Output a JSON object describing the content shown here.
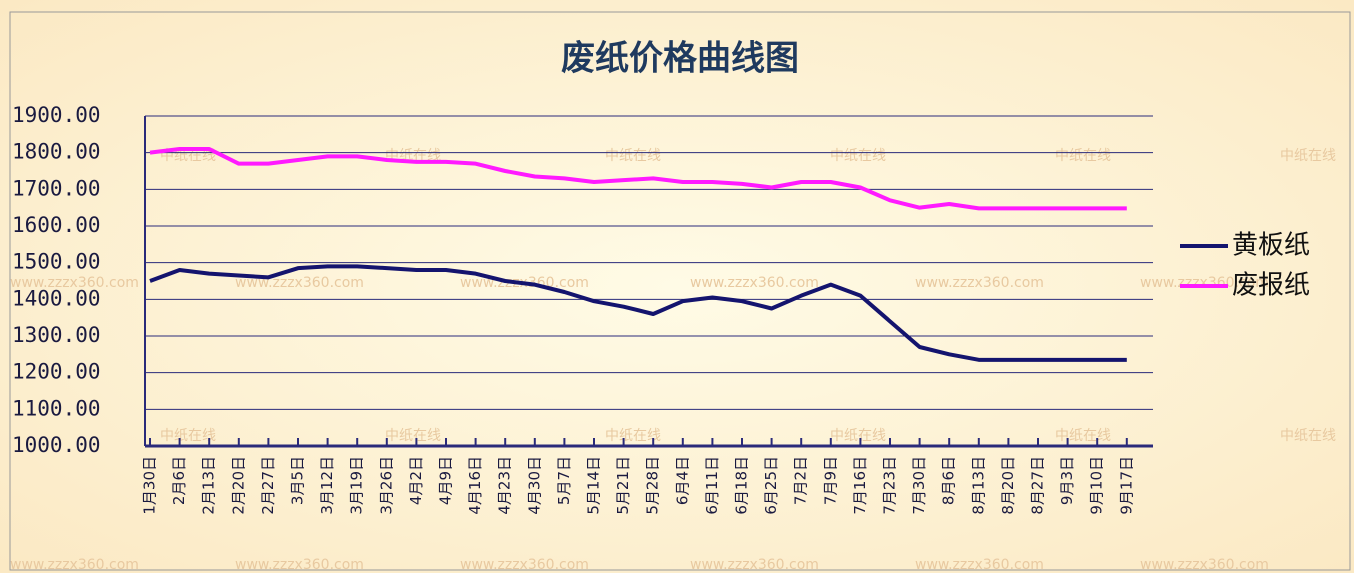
{
  "chart_data": {
    "type": "line",
    "title": "废纸价格曲线图",
    "categories": [
      "1月30日",
      "2月6日",
      "2月13日",
      "2月20日",
      "2月27日",
      "3月5日",
      "3月12日",
      "3月19日",
      "3月26日",
      "4月2日",
      "4月9日",
      "4月16日",
      "4月23日",
      "4月30日",
      "5月7日",
      "5月14日",
      "5月21日",
      "5月28日",
      "6月4日",
      "6月11日",
      "6月18日",
      "6月25日",
      "7月2日",
      "7月9日",
      "7月16日",
      "7月23日",
      "7月30日",
      "8月6日",
      "8月13日",
      "8月20日",
      "8月27日",
      "9月3日",
      "9月10日",
      "9月17日"
    ],
    "series": [
      {
        "name": "黄板纸",
        "color": "#14146e",
        "values": [
          1450,
          1480,
          1470,
          1465,
          1460,
          1485,
          1490,
          1490,
          1485,
          1480,
          1480,
          1470,
          1450,
          1440,
          1420,
          1395,
          1380,
          1360,
          1395,
          1405,
          1395,
          1375,
          1410,
          1440,
          1410,
          1340,
          1270,
          1250,
          1235,
          1235,
          1235,
          1235,
          1235,
          1235
        ]
      },
      {
        "name": "废报纸",
        "color": "#ff1aff",
        "values": [
          1800,
          1810,
          1810,
          1770,
          1770,
          1780,
          1790,
          1790,
          1780,
          1775,
          1775,
          1770,
          1750,
          1735,
          1730,
          1720,
          1725,
          1730,
          1720,
          1720,
          1715,
          1705,
          1720,
          1720,
          1705,
          1670,
          1650,
          1660,
          1648,
          1648,
          1648,
          1648,
          1648,
          1648
        ]
      }
    ],
    "ylim": [
      1000,
      1900
    ],
    "yticks": [
      {
        "value": 1000,
        "label": "1000.00"
      },
      {
        "value": 1100,
        "label": "1100.00"
      },
      {
        "value": 1200,
        "label": "1200.00"
      },
      {
        "value": 1300,
        "label": "1300.00"
      },
      {
        "value": 1400,
        "label": "1400.00"
      },
      {
        "value": 1500,
        "label": "1500.00"
      },
      {
        "value": 1600,
        "label": "1600.00"
      },
      {
        "value": 1700,
        "label": "1700.00"
      },
      {
        "value": 1800,
        "label": "1800.00"
      },
      {
        "value": 1900,
        "label": "1900.00"
      }
    ],
    "grid": true,
    "legend": "right",
    "watermarks": [
      "中纸在线",
      "www.zzzx360.com"
    ]
  }
}
